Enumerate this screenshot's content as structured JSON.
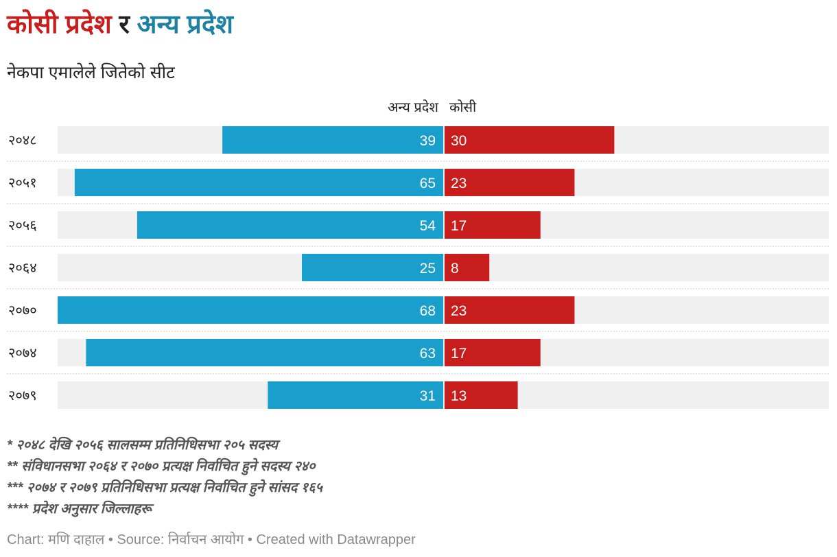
{
  "title": {
    "part1": "कोसी प्रदेश",
    "part2": "र",
    "part3": "अन्य प्रदेश"
  },
  "subtitle": "नेकपा एमालेले जितेको सीट",
  "colors": {
    "kosi": "#c71e1d",
    "other": "#1a9fcd",
    "background_bar": "#f0f0f0",
    "title_other": "#1d81a2"
  },
  "chart_data": {
    "type": "bar",
    "orientation": "horizontal-diverging",
    "categories": [
      "२०४८",
      "२०५१",
      "२०५६",
      "२०६४",
      "२०७०",
      "२०७४",
      "२०७९"
    ],
    "series": [
      {
        "name": "अन्य प्रदेश",
        "side": "left",
        "values": [
          39,
          65,
          54,
          25,
          68,
          63,
          31
        ]
      },
      {
        "name": "कोसी",
        "side": "right",
        "values": [
          30,
          23,
          17,
          8,
          23,
          17,
          13
        ]
      }
    ],
    "xlim": [
      -68,
      68
    ]
  },
  "notes": [
    "* २०४८ देखि २०५६ सालसम्म प्रतिनिधिसभा २०५ सदस्य",
    "** संविधानसभा २०६४ र २०७० प्रत्यक्ष निर्वाचित हुने सदस्य २४०",
    "*** २०७४ र २०७९ प्रतिनिधिसभा प्रत्यक्ष निर्वाचित हुने सांसद १६५",
    "**** प्रदेश अनुसार जिल्लाहरू"
  ],
  "byline": "Chart: मणि दाहाल • Source: निर्वाचन आयोग • Created with Datawrapper"
}
